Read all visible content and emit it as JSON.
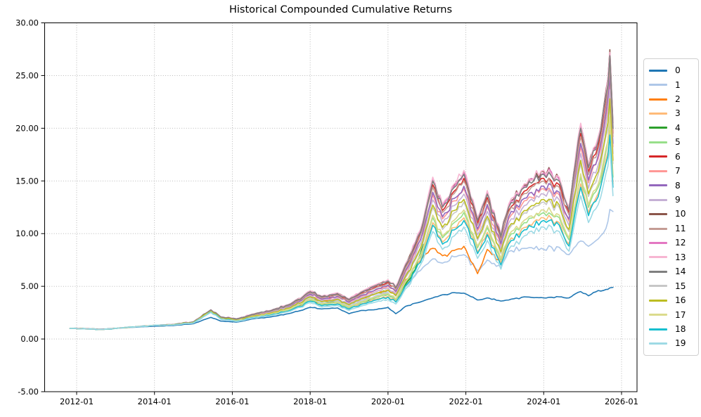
{
  "figure": {
    "title": "Historical Compounded Cumulative Returns",
    "background_color": "#ffffff",
    "grid_color": "#b0b0b0",
    "spine_color": "#000000",
    "text_color": "#000000"
  },
  "chart_data": {
    "type": "line",
    "title": "Historical Compounded Cumulative Returns",
    "xlabel": "",
    "ylabel": "",
    "ylim": [
      -5,
      30
    ],
    "xlim_years": [
      2011.17,
      2026.42
    ],
    "grid": "dotted major gridlines, both axes",
    "legend_position": "outside-right",
    "x_unit": "decimal year (ticks formatted YYYY-MM)",
    "x_ticks": [
      {
        "year": 2012,
        "label": "2012-01"
      },
      {
        "year": 2014,
        "label": "2014-01"
      },
      {
        "year": 2016,
        "label": "2016-01"
      },
      {
        "year": 2018,
        "label": "2018-01"
      },
      {
        "year": 2020,
        "label": "2020-01"
      },
      {
        "year": 2022,
        "label": "2022-01"
      },
      {
        "year": 2024,
        "label": "2024-01"
      },
      {
        "year": 2026,
        "label": "2026-01"
      }
    ],
    "y_ticks": [
      {
        "value": -5,
        "label": "-5.00"
      },
      {
        "value": 0,
        "label": "0.00"
      },
      {
        "value": 5,
        "label": "5.00"
      },
      {
        "value": 10,
        "label": "10.00"
      },
      {
        "value": 15,
        "label": "15.00"
      },
      {
        "value": 20,
        "label": "20.00"
      },
      {
        "value": 25,
        "label": "25.00"
      },
      {
        "value": 30,
        "label": "30.00"
      }
    ],
    "x": [
      2011.83,
      2012.3,
      2012.7,
      2013.1,
      2013.5,
      2014.0,
      2014.5,
      2015.0,
      2015.45,
      2015.7,
      2016.1,
      2016.5,
      2017.0,
      2017.5,
      2018.0,
      2018.3,
      2018.7,
      2019.0,
      2019.3,
      2019.7,
      2020.0,
      2020.2,
      2020.45,
      2020.7,
      2020.9,
      2021.15,
      2021.4,
      2021.7,
      2021.95,
      2022.3,
      2022.55,
      2022.9,
      2023.1,
      2023.5,
      2024.0,
      2024.4,
      2024.65,
      2024.95,
      2025.15,
      2025.4,
      2025.6,
      2025.7,
      2025.78
    ],
    "series": [
      {
        "name": "0",
        "color": "#1f77b4",
        "values": [
          1.0,
          0.97,
          0.94,
          1.04,
          1.12,
          1.22,
          1.28,
          1.45,
          2.05,
          1.7,
          1.6,
          1.9,
          2.1,
          2.45,
          3.0,
          2.85,
          2.95,
          2.4,
          2.7,
          2.8,
          3.0,
          2.4,
          3.1,
          3.4,
          3.6,
          3.9,
          4.2,
          4.4,
          4.35,
          3.7,
          3.9,
          3.6,
          3.7,
          4.0,
          3.9,
          4.0,
          3.9,
          4.5,
          4.1,
          4.6,
          4.7,
          4.85,
          4.9
        ]
      },
      {
        "name": "1",
        "color": "#aec7e8",
        "values": [
          1.0,
          0.95,
          0.92,
          1.05,
          1.15,
          1.3,
          1.35,
          1.55,
          2.6,
          1.95,
          1.75,
          2.1,
          2.4,
          2.9,
          3.85,
          3.4,
          3.6,
          3.1,
          3.6,
          4.1,
          4.4,
          3.6,
          5.0,
          6.0,
          6.8,
          7.6,
          7.2,
          7.8,
          8.0,
          6.5,
          7.5,
          6.8,
          8.3,
          8.6,
          8.5,
          8.7,
          8.0,
          9.3,
          8.8,
          9.5,
          10.5,
          12.3,
          12.1
        ]
      },
      {
        "name": "2",
        "color": "#ff7f0e",
        "values": [
          1.01,
          0.96,
          0.93,
          1.06,
          1.16,
          1.31,
          1.36,
          1.57,
          2.64,
          1.98,
          1.79,
          2.15,
          2.47,
          3.0,
          4.0,
          3.55,
          3.77,
          3.25,
          3.79,
          4.33,
          4.66,
          4.13,
          5.6,
          6.9,
          7.8,
          8.6,
          7.9,
          8.4,
          8.8,
          6.2,
          8.5,
          7.3,
          null,
          null,
          null,
          null,
          null,
          null,
          null,
          null,
          null,
          null,
          null
        ]
      },
      {
        "name": "3",
        "color": "#ffbb78",
        "values": [
          1.0,
          0.95,
          0.92,
          1.05,
          1.15,
          1.3,
          1.34,
          1.53,
          2.55,
          1.91,
          1.7,
          2.03,
          2.3,
          2.76,
          3.64,
          3.2,
          3.37,
          2.89,
          3.35,
          3.79,
          4.05,
          3.59,
          5.15,
          6.62,
          8.1,
          11.04,
          9.2,
          10.58,
          11.5,
          8.28,
          10.12,
          7.18,
          9.2,
          10.58,
          11.5,
          11.04,
          9.02,
          14.72,
          11.96,
          13.8,
          17.02,
          19.78,
          14.72
        ]
      },
      {
        "name": "4",
        "color": "#2ca02c",
        "values": [
          1.0,
          0.95,
          0.92,
          1.05,
          1.15,
          1.3,
          1.35,
          1.54,
          2.58,
          1.93,
          1.73,
          2.07,
          2.36,
          2.85,
          3.77,
          3.33,
          3.52,
          3.02,
          3.5,
          3.98,
          4.27,
          3.79,
          5.2,
          6.6,
          9.0,
          null,
          null,
          null,
          null,
          null,
          null,
          null,
          null,
          null,
          null,
          null,
          null,
          null,
          null,
          null,
          null,
          null,
          null
        ]
      },
      {
        "name": "5",
        "color": "#98df8a",
        "values": [
          1.0,
          0.95,
          0.92,
          1.05,
          1.15,
          1.3,
          1.35,
          1.54,
          2.57,
          1.93,
          1.73,
          2.06,
          2.35,
          2.83,
          3.75,
          3.3,
          3.49,
          3.0,
          3.47,
          3.94,
          4.22,
          3.74,
          5.38,
          6.91,
          8.45,
          11.52,
          9.6,
          11.04,
          12.0,
          8.64,
          10.56,
          7.49,
          9.6,
          11.04,
          12.0,
          11.52,
          9.41,
          15.36,
          12.48,
          14.4,
          17.76,
          20.64,
          15.36
        ]
      },
      {
        "name": "6",
        "color": "#d62728",
        "values": [
          1.01,
          0.96,
          0.93,
          1.05,
          1.15,
          1.3,
          1.37,
          1.61,
          2.74,
          2.07,
          1.88,
          2.29,
          2.66,
          3.27,
          4.42,
          3.94,
          4.22,
          3.67,
          4.3,
          4.96,
          5.37,
          4.76,
          6.83,
          8.78,
          10.74,
          14.64,
          12.2,
          14.03,
          15.25,
          10.98,
          13.42,
          9.52,
          12.2,
          14.03,
          15.25,
          14.64,
          11.96,
          19.52,
          15.86,
          18.3,
          22.57,
          26.23,
          19.52
        ]
      },
      {
        "name": "7",
        "color": "#ff9896",
        "values": [
          1.0,
          0.95,
          0.92,
          1.05,
          1.15,
          1.3,
          1.37,
          1.59,
          2.69,
          2.03,
          1.84,
          2.22,
          2.57,
          3.14,
          4.21,
          3.74,
          3.99,
          3.46,
          4.05,
          4.65,
          5.02,
          4.45,
          6.38,
          8.21,
          10.03,
          13.68,
          11.4,
          13.11,
          14.25,
          10.26,
          12.54,
          8.89,
          11.4,
          13.11,
          14.25,
          13.68,
          11.17,
          18.24,
          14.82,
          17.1,
          21.09,
          24.51,
          18.24
        ]
      },
      {
        "name": "8",
        "color": "#9467bd",
        "values": [
          1.0,
          0.95,
          0.92,
          1.05,
          1.15,
          1.3,
          1.37,
          1.59,
          2.7,
          2.04,
          1.85,
          2.24,
          2.59,
          3.17,
          4.26,
          3.79,
          4.05,
          3.51,
          4.11,
          4.72,
          5.1,
          4.52,
          6.5,
          8.35,
          10.21,
          13.92,
          11.6,
          13.34,
          14.5,
          10.44,
          12.76,
          9.05,
          11.6,
          13.34,
          14.5,
          13.92,
          11.37,
          18.56,
          15.08,
          17.4,
          21.46,
          24.94,
          18.56
        ]
      },
      {
        "name": "9",
        "color": "#c5b0d5",
        "values": [
          1.0,
          0.95,
          0.92,
          1.05,
          1.15,
          1.3,
          1.36,
          1.58,
          2.66,
          2.01,
          1.81,
          2.19,
          2.52,
          3.07,
          4.11,
          3.64,
          3.88,
          3.36,
          3.92,
          4.49,
          4.84,
          4.29,
          6.16,
          7.92,
          9.68,
          13.2,
          11.0,
          12.65,
          13.75,
          9.9,
          12.1,
          8.58,
          11.0,
          12.65,
          13.75,
          13.2,
          10.78,
          17.6,
          14.3,
          16.5,
          20.35,
          23.65,
          17.6
        ]
      },
      {
        "name": "10",
        "color": "#8c564b",
        "values": [
          1.0,
          0.95,
          0.92,
          1.05,
          1.15,
          1.3,
          1.38,
          1.62,
          2.77,
          2.1,
          1.91,
          2.34,
          2.72,
          3.36,
          4.54,
          4.06,
          4.36,
          3.8,
          4.46,
          5.15,
          5.59,
          4.95,
          7.11,
          9.14,
          11.18,
          15.24,
          12.7,
          14.61,
          15.88,
          11.43,
          13.97,
          9.91,
          12.7,
          14.61,
          15.88,
          15.24,
          12.45,
          20.32,
          16.51,
          19.05,
          23.6,
          27.45,
          20.5
        ]
      },
      {
        "name": "11",
        "color": "#c49c94",
        "values": [
          1.0,
          0.95,
          0.92,
          1.05,
          1.15,
          1.3,
          1.37,
          1.6,
          2.73,
          2.06,
          1.87,
          2.28,
          2.64,
          3.24,
          4.36,
          3.89,
          4.16,
          3.62,
          4.24,
          4.88,
          5.28,
          4.68,
          6.72,
          8.64,
          10.56,
          14.4,
          12.0,
          13.8,
          15.0,
          10.8,
          13.2,
          9.36,
          12.0,
          13.8,
          15.0,
          14.4,
          11.76,
          19.2,
          15.6,
          18.0,
          22.2,
          25.8,
          19.2
        ]
      },
      {
        "name": "12",
        "color": "#e377c2",
        "values": [
          1.0,
          0.95,
          0.92,
          1.05,
          1.15,
          1.3,
          1.38,
          1.62,
          2.76,
          2.09,
          1.91,
          2.33,
          2.71,
          3.34,
          4.52,
          4.03,
          4.33,
          3.77,
          4.43,
          5.11,
          5.54,
          4.91,
          7.06,
          9.07,
          11.09,
          15.12,
          12.6,
          14.49,
          15.75,
          11.34,
          13.86,
          9.83,
          12.6,
          14.49,
          15.75,
          15.12,
          12.35,
          20.16,
          16.38,
          18.9,
          23.31,
          27.09,
          20.16
        ]
      },
      {
        "name": "13",
        "color": "#f7b6d2",
        "values": [
          1.0,
          0.95,
          0.92,
          1.05,
          1.15,
          1.3,
          1.38,
          1.62,
          2.78,
          2.1,
          1.92,
          2.35,
          2.74,
          3.37,
          4.57,
          4.08,
          4.39,
          3.82,
          4.49,
          5.19,
          5.63,
          4.99,
          7.17,
          9.22,
          11.26,
          15.36,
          12.8,
          14.72,
          16.0,
          11.52,
          14.08,
          9.98,
          12.8,
          14.72,
          16.0,
          15.36,
          12.54,
          20.48,
          16.64,
          19.2,
          23.3,
          27.2,
          20.1
        ]
      },
      {
        "name": "14",
        "color": "#7f7f7f",
        "values": [
          1.0,
          0.95,
          0.92,
          1.05,
          1.15,
          1.3,
          1.38,
          1.62,
          2.76,
          2.09,
          1.9,
          2.32,
          2.7,
          3.32,
          4.49,
          4.01,
          4.31,
          3.75,
          4.4,
          5.08,
          5.5,
          4.88,
          7.0,
          9.0,
          11.0,
          15.0,
          12.5,
          14.38,
          15.63,
          11.25,
          13.75,
          9.75,
          12.5,
          14.38,
          15.63,
          15.0,
          12.25,
          20.0,
          16.25,
          18.75,
          23.13,
          26.88,
          20.0
        ]
      },
      {
        "name": "15",
        "color": "#c7c7c7",
        "values": [
          1.0,
          0.95,
          0.92,
          1.05,
          1.15,
          1.3,
          1.35,
          1.56,
          2.63,
          1.97,
          1.77,
          2.14,
          2.45,
          2.97,
          3.95,
          3.5,
          3.71,
          3.2,
          3.73,
          4.26,
          4.58,
          4.06,
          5.82,
          7.49,
          9.15,
          12.48,
          10.4,
          11.96,
          13.0,
          9.36,
          11.44,
          8.11,
          10.4,
          11.96,
          13.0,
          12.48,
          10.19,
          16.64,
          13.52,
          15.6,
          19.24,
          22.36,
          16.64
        ]
      },
      {
        "name": "16",
        "color": "#bcbd22",
        "values": [
          1.0,
          0.95,
          0.92,
          1.05,
          1.15,
          1.3,
          1.36,
          1.57,
          2.64,
          1.98,
          1.79,
          2.15,
          2.47,
          3.0,
          4.0,
          3.55,
          3.77,
          3.25,
          3.79,
          4.33,
          4.66,
          4.13,
          5.94,
          7.63,
          9.33,
          12.72,
          10.6,
          12.19,
          13.25,
          9.54,
          11.66,
          8.27,
          10.6,
          12.19,
          13.25,
          12.72,
          10.39,
          16.96,
          13.78,
          15.9,
          19.61,
          22.79,
          16.96
        ]
      },
      {
        "name": "17",
        "color": "#dbdb8d",
        "values": [
          1.0,
          0.95,
          0.92,
          1.05,
          1.15,
          1.3,
          1.35,
          1.54,
          2.59,
          1.94,
          1.74,
          2.08,
          2.38,
          2.87,
          3.8,
          3.35,
          3.54,
          3.05,
          3.54,
          4.02,
          4.31,
          3.82,
          5.49,
          7.06,
          8.62,
          11.76,
          9.8,
          11.27,
          12.25,
          8.82,
          10.78,
          7.64,
          9.8,
          11.27,
          12.25,
          11.76,
          9.6,
          15.68,
          12.74,
          14.7,
          18.13,
          21.07,
          15.68
        ]
      },
      {
        "name": "18",
        "color": "#17becf",
        "values": [
          1.0,
          0.95,
          0.92,
          1.05,
          1.15,
          1.3,
          1.34,
          1.52,
          2.54,
          1.9,
          1.69,
          2.01,
          2.28,
          2.73,
          3.59,
          3.16,
          3.32,
          2.84,
          3.28,
          3.71,
          3.96,
          3.51,
          5.04,
          6.48,
          7.92,
          10.8,
          9.0,
          10.35,
          11.25,
          8.1,
          9.9,
          7.02,
          9.0,
          10.35,
          11.25,
          10.8,
          8.82,
          14.4,
          11.7,
          13.5,
          16.65,
          19.35,
          14.4
        ]
      },
      {
        "name": "19",
        "color": "#9edae5",
        "values": [
          1.0,
          0.95,
          0.92,
          1.05,
          1.15,
          1.3,
          1.33,
          1.51,
          2.51,
          1.87,
          1.66,
          1.97,
          2.22,
          2.65,
          3.46,
          3.03,
          3.18,
          2.71,
          3.12,
          3.52,
          3.74,
          3.32,
          4.76,
          6.12,
          7.48,
          10.2,
          8.5,
          9.78,
          10.63,
          7.65,
          9.35,
          6.63,
          8.5,
          9.78,
          10.63,
          10.2,
          8.33,
          13.6,
          11.05,
          12.75,
          15.73,
          18.28,
          13.6
        ]
      }
    ]
  }
}
